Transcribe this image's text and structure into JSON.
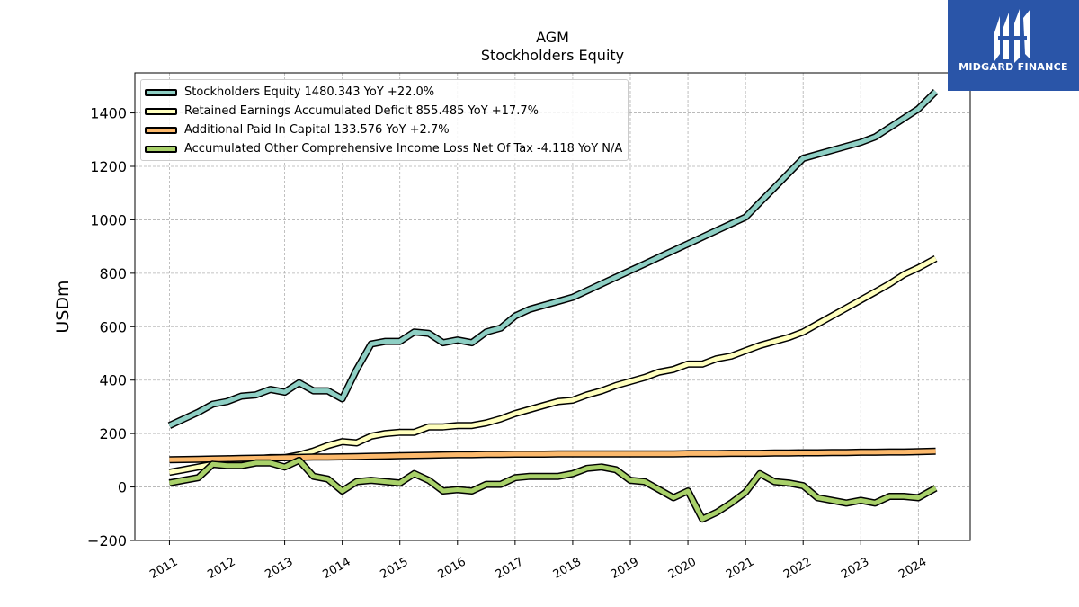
{
  "header": {
    "title": "AGM",
    "subtitle": "Stockholders  Equity"
  },
  "logo": {
    "text": "MIDGARD FINANCE",
    "color": "#2a55a8"
  },
  "chart_data": {
    "type": "line",
    "ylabel": "USDm",
    "ylim": [
      -200,
      1550
    ],
    "yticks": [
      -200,
      0,
      200,
      400,
      600,
      800,
      1000,
      1200,
      1400
    ],
    "ytick_labels": [
      "−200",
      "0",
      "200",
      "400",
      "600",
      "800",
      "1000",
      "1200",
      "1400"
    ],
    "xlim": [
      2010.4,
      2024.9
    ],
    "xticks": [
      2011,
      2012,
      2013,
      2014,
      2015,
      2016,
      2017,
      2018,
      2019,
      2020,
      2021,
      2022,
      2023,
      2024
    ],
    "xtick_labels": [
      "2011",
      "2012",
      "2013",
      "2014",
      "2015",
      "2016",
      "2017",
      "2018",
      "2019",
      "2020",
      "2021",
      "2022",
      "2023",
      "2024"
    ],
    "grid": true,
    "legend_position": "top-left",
    "x": [
      2011.0,
      2011.25,
      2011.5,
      2011.75,
      2012.0,
      2012.25,
      2012.5,
      2012.75,
      2013.0,
      2013.25,
      2013.5,
      2013.75,
      2014.0,
      2014.25,
      2014.5,
      2014.75,
      2015.0,
      2015.25,
      2015.5,
      2015.75,
      2016.0,
      2016.25,
      2016.5,
      2016.75,
      2017.0,
      2017.25,
      2017.5,
      2017.75,
      2018.0,
      2018.25,
      2018.5,
      2018.75,
      2019.0,
      2019.25,
      2019.5,
      2019.75,
      2020.0,
      2020.25,
      2020.5,
      2020.75,
      2021.0,
      2021.25,
      2021.5,
      2021.75,
      2022.0,
      2022.25,
      2022.5,
      2022.75,
      2023.0,
      2023.25,
      2023.5,
      2023.75,
      2024.0,
      2024.3
    ],
    "series": [
      {
        "name": "Stockholders Equity",
        "legend_label": "Stockholders Equity  1480.343 YoY +22.0%",
        "color": "#8ecfc4",
        "values": [
          230,
          255,
          280,
          310,
          320,
          340,
          345,
          365,
          355,
          390,
          360,
          360,
          330,
          440,
          535,
          545,
          545,
          580,
          575,
          540,
          550,
          540,
          580,
          595,
          640,
          665,
          680,
          695,
          710,
          735,
          760,
          785,
          810,
          835,
          860,
          885,
          910,
          935,
          960,
          985,
          1010,
          1065,
          1120,
          1175,
          1230,
          1245,
          1260,
          1275,
          1290,
          1310,
          1345,
          1380,
          1415,
          1480
        ]
      },
      {
        "name": "Retained Earnings Accumulated Deficit",
        "legend_label": "Retained Earnings Accumulated Deficit  855.485 YoY +17.7%",
        "color": "#ffffbe",
        "values": [
          55,
          65,
          75,
          85,
          95,
          100,
          105,
          110,
          110,
          120,
          135,
          155,
          170,
          165,
          190,
          200,
          205,
          205,
          225,
          225,
          230,
          230,
          240,
          255,
          275,
          290,
          305,
          320,
          325,
          345,
          360,
          380,
          395,
          410,
          430,
          440,
          460,
          460,
          480,
          490,
          510,
          530,
          545,
          560,
          580,
          610,
          640,
          670,
          700,
          730,
          760,
          795,
          820,
          855
        ]
      },
      {
        "name": "Additional Paid In Capital",
        "legend_label": "Additional Paid In Capital  133.576 YoY +2.7%",
        "color": "#fcb96c",
        "values": [
          102,
          103,
          104,
          105,
          106,
          107,
          108,
          109,
          110,
          111,
          112,
          112,
          113,
          114,
          115,
          116,
          117,
          118,
          119,
          120,
          121,
          121,
          122,
          122,
          123,
          123,
          123,
          124,
          124,
          124,
          124,
          124,
          124,
          124,
          124,
          124,
          125,
          125,
          125,
          126,
          126,
          126,
          127,
          127,
          128,
          128,
          129,
          129,
          130,
          130,
          131,
          131,
          132,
          134
        ]
      },
      {
        "name": "Accumulated Other Comprehensive Income Loss Net Of Tax",
        "legend_label": "Accumulated Other Comprehensive Income Loss Net Of Tax  -4.118 YoY N/A",
        "color": "#a9d16a",
        "values": [
          15,
          25,
          35,
          85,
          80,
          80,
          90,
          90,
          75,
          100,
          40,
          30,
          -15,
          20,
          25,
          20,
          15,
          50,
          25,
          -15,
          -10,
          -15,
          10,
          10,
          35,
          40,
          40,
          40,
          50,
          70,
          75,
          65,
          25,
          20,
          -10,
          -40,
          -15,
          -120,
          -95,
          -60,
          -20,
          50,
          20,
          15,
          5,
          -40,
          -50,
          -60,
          -50,
          -60,
          -35,
          -35,
          -40,
          -4
        ]
      }
    ]
  }
}
